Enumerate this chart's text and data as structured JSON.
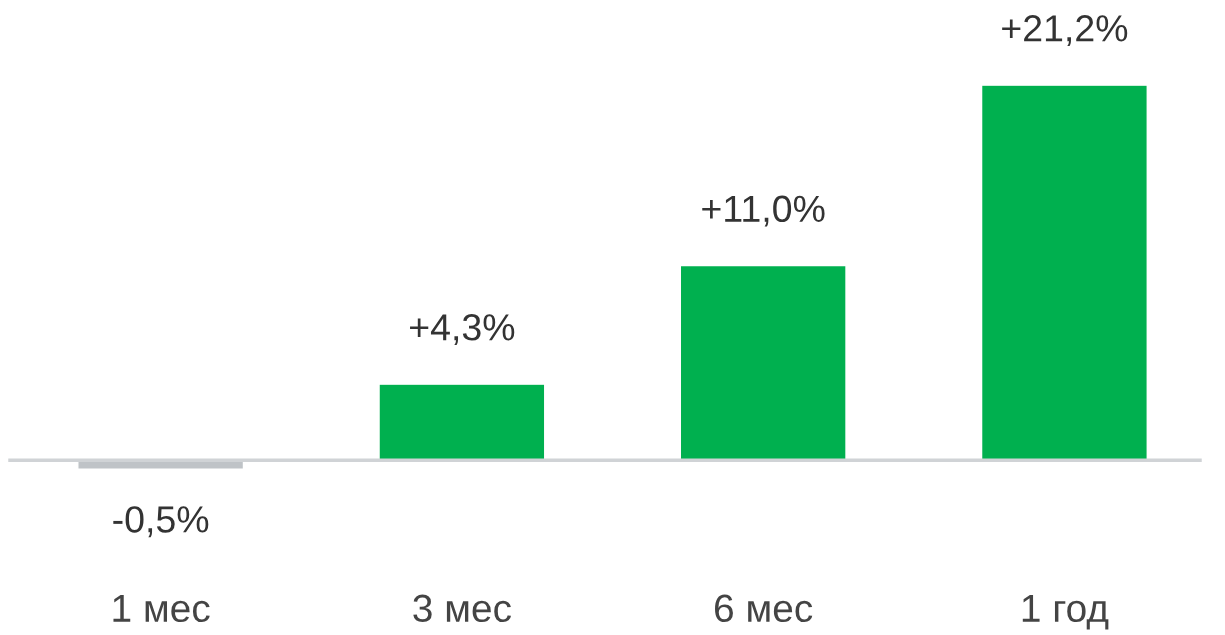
{
  "chart_data": {
    "type": "bar",
    "categories": [
      "1 мес",
      "3 мес",
      "6 мес",
      "1 год"
    ],
    "values": [
      -0.5,
      4.3,
      11.0,
      21.2
    ],
    "colors": [
      "#bfc3c7",
      "#00b04f",
      "#00b04f",
      "#00b04f"
    ],
    "value_labels": [
      "-0,5%",
      "+4,3%",
      "+11,0%",
      "+21,2%"
    ],
    "grid": false,
    "legend": false
  }
}
